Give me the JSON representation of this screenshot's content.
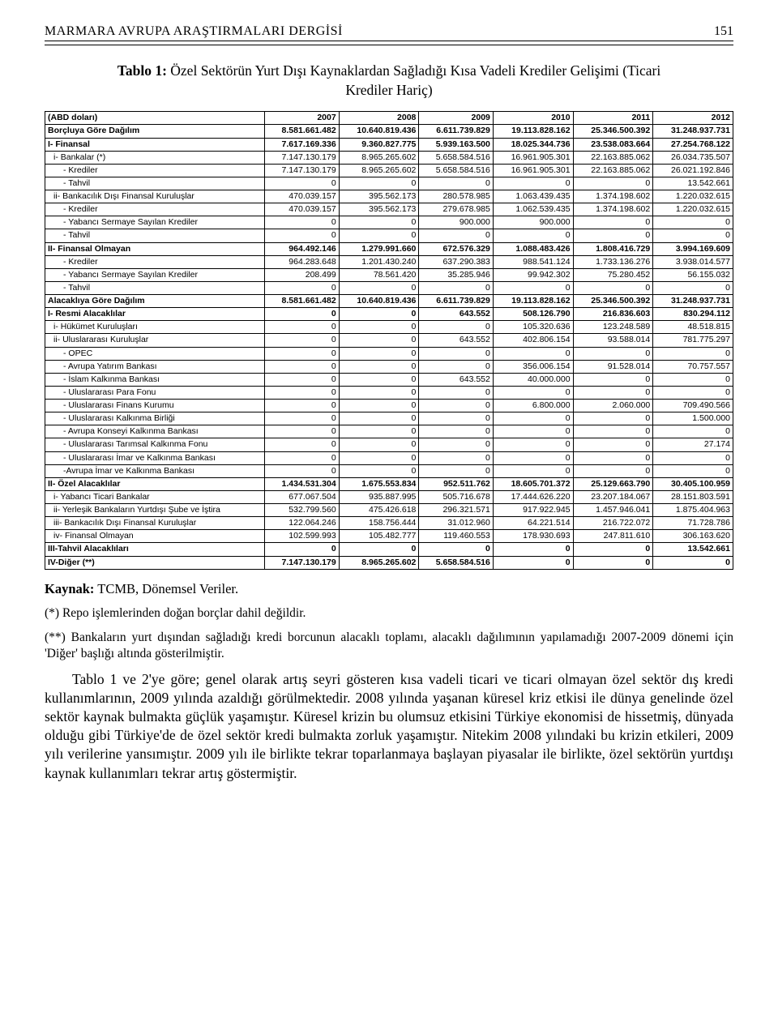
{
  "header": {
    "journal": "MARMARA AVRUPA ARAŞTIRMALARI DERGİSİ",
    "page": "151"
  },
  "caption": {
    "label": "Tablo 1:",
    "text": " Özel Sektörün Yurt Dışı Kaynaklardan Sağladığı Kısa Vadeli Krediler Gelişimi (Ticari Krediler Hariç)"
  },
  "table": {
    "corner": "(ABD doları)",
    "years": [
      "2007",
      "2008",
      "2009",
      "2010",
      "2011",
      "2012"
    ],
    "rows": [
      {
        "label": "Borçluya Göre Dağılım",
        "bold": true,
        "indent": 0,
        "vals": [
          "8.581.661.482",
          "10.640.819.436",
          "6.611.739.829",
          "19.113.828.162",
          "25.346.500.392",
          "31.248.937.731"
        ]
      },
      {
        "label": "I- Finansal",
        "bold": true,
        "indent": 0,
        "vals": [
          "7.617.169.336",
          "9.360.827.775",
          "5.939.163.500",
          "18.025.344.736",
          "23.538.083.664",
          "27.254.768.122"
        ]
      },
      {
        "label": "i- Bankalar (*)",
        "bold": false,
        "indent": 1,
        "vals": [
          "7.147.130.179",
          "8.965.265.602",
          "5.658.584.516",
          "16.961.905.301",
          "22.163.885.062",
          "26.034.735.507"
        ]
      },
      {
        "label": "- Krediler",
        "bold": false,
        "indent": 2,
        "vals": [
          "7.147.130.179",
          "8.965.265.602",
          "5.658.584.516",
          "16.961.905.301",
          "22.163.885.062",
          "26.021.192.846"
        ]
      },
      {
        "label": "- Tahvil",
        "bold": false,
        "indent": 2,
        "vals": [
          "0",
          "0",
          "0",
          "0",
          "0",
          "13.542.661"
        ]
      },
      {
        "label": "ii- Bankacılık Dışı Finansal Kuruluşlar",
        "bold": false,
        "indent": 1,
        "vals": [
          "470.039.157",
          "395.562.173",
          "280.578.985",
          "1.063.439.435",
          "1.374.198.602",
          "1.220.032.615"
        ]
      },
      {
        "label": "- Krediler",
        "bold": false,
        "indent": 2,
        "vals": [
          "470.039.157",
          "395.562.173",
          "279.678.985",
          "1.062.539.435",
          "1.374.198.602",
          "1.220.032.615"
        ]
      },
      {
        "label": "- Yabancı Sermaye Sayılan Krediler",
        "bold": false,
        "indent": 2,
        "vals": [
          "0",
          "0",
          "900.000",
          "900.000",
          "0",
          "0"
        ]
      },
      {
        "label": "- Tahvil",
        "bold": false,
        "indent": 2,
        "vals": [
          "0",
          "0",
          "0",
          "0",
          "0",
          "0"
        ]
      },
      {
        "label": "II- Finansal Olmayan",
        "bold": true,
        "indent": 0,
        "vals": [
          "964.492.146",
          "1.279.991.660",
          "672.576.329",
          "1.088.483.426",
          "1.808.416.729",
          "3.994.169.609"
        ]
      },
      {
        "label": "- Krediler",
        "bold": false,
        "indent": 2,
        "vals": [
          "964.283.648",
          "1.201.430.240",
          "637.290.383",
          "988.541.124",
          "1.733.136.276",
          "3.938.014.577"
        ]
      },
      {
        "label": "- Yabancı Sermaye Sayılan Krediler",
        "bold": false,
        "indent": 2,
        "vals": [
          "208.499",
          "78.561.420",
          "35.285.946",
          "99.942.302",
          "75.280.452",
          "56.155.032"
        ]
      },
      {
        "label": "- Tahvil",
        "bold": false,
        "indent": 2,
        "vals": [
          "0",
          "0",
          "0",
          "0",
          "0",
          "0"
        ]
      },
      {
        "label": "Alacaklıya Göre Dağılım",
        "bold": true,
        "indent": 0,
        "vals": [
          "8.581.661.482",
          "10.640.819.436",
          "6.611.739.829",
          "19.113.828.162",
          "25.346.500.392",
          "31.248.937.731"
        ]
      },
      {
        "label": "I- Resmi Alacaklılar",
        "bold": true,
        "indent": 0,
        "vals": [
          "0",
          "0",
          "643.552",
          "508.126.790",
          "216.836.603",
          "830.294.112"
        ]
      },
      {
        "label": "i- Hükümet Kuruluşları",
        "bold": false,
        "indent": 1,
        "vals": [
          "0",
          "0",
          "0",
          "105.320.636",
          "123.248.589",
          "48.518.815"
        ]
      },
      {
        "label": "ii- Uluslararası Kuruluşlar",
        "bold": false,
        "indent": 1,
        "vals": [
          "0",
          "0",
          "643.552",
          "402.806.154",
          "93.588.014",
          "781.775.297"
        ]
      },
      {
        "label": "- OPEC",
        "bold": false,
        "indent": 2,
        "vals": [
          "0",
          "0",
          "0",
          "0",
          "0",
          "0"
        ]
      },
      {
        "label": "- Avrupa Yatırım Bankası",
        "bold": false,
        "indent": 2,
        "vals": [
          "0",
          "0",
          "0",
          "356.006.154",
          "91.528.014",
          "70.757.557"
        ]
      },
      {
        "label": "- İslam Kalkınma Bankası",
        "bold": false,
        "indent": 2,
        "vals": [
          "0",
          "0",
          "643.552",
          "40.000.000",
          "0",
          "0"
        ]
      },
      {
        "label": "- Uluslararası Para Fonu",
        "bold": false,
        "indent": 2,
        "vals": [
          "0",
          "0",
          "0",
          "0",
          "0",
          "0"
        ]
      },
      {
        "label": "- Uluslararası Finans Kurumu",
        "bold": false,
        "indent": 2,
        "vals": [
          "0",
          "0",
          "0",
          "6.800.000",
          "2.060.000",
          "709.490.566"
        ]
      },
      {
        "label": "- Uluslararası Kalkınma Birliği",
        "bold": false,
        "indent": 2,
        "vals": [
          "0",
          "0",
          "0",
          "0",
          "0",
          "1.500.000"
        ]
      },
      {
        "label": "- Avrupa Konseyi Kalkınma Bankası",
        "bold": false,
        "indent": 2,
        "vals": [
          "0",
          "0",
          "0",
          "0",
          "0",
          "0"
        ]
      },
      {
        "label": "- Uluslararası Tarımsal Kalkınma Fonu",
        "bold": false,
        "indent": 2,
        "vals": [
          "0",
          "0",
          "0",
          "0",
          "0",
          "27.174"
        ]
      },
      {
        "label": "- Uluslararası İmar ve Kalkınma Bankası",
        "bold": false,
        "indent": 2,
        "vals": [
          "0",
          "0",
          "0",
          "0",
          "0",
          "0"
        ]
      },
      {
        "label": "-Avrupa İmar ve Kalkınma Bankası",
        "bold": false,
        "indent": 2,
        "vals": [
          "0",
          "0",
          "0",
          "0",
          "0",
          "0"
        ]
      },
      {
        "label": "II- Özel Alacaklılar",
        "bold": true,
        "indent": 0,
        "vals": [
          "1.434.531.304",
          "1.675.553.834",
          "952.511.762",
          "18.605.701.372",
          "25.129.663.790",
          "30.405.100.959"
        ]
      },
      {
        "label": "i- Yabancı Ticari Bankalar",
        "bold": false,
        "indent": 1,
        "vals": [
          "677.067.504",
          "935.887.995",
          "505.716.678",
          "17.444.626.220",
          "23.207.184.067",
          "28.151.803.591"
        ]
      },
      {
        "label": "ii- Yerleşik Bankaların Yurtdışı Şube ve İştira",
        "bold": false,
        "indent": 1,
        "vals": [
          "532.799.560",
          "475.426.618",
          "296.321.571",
          "917.922.945",
          "1.457.946.041",
          "1.875.404.963"
        ]
      },
      {
        "label": "iii- Bankacılık Dışı Finansal Kuruluşlar",
        "bold": false,
        "indent": 1,
        "vals": [
          "122.064.246",
          "158.756.444",
          "31.012.960",
          "64.221.514",
          "216.722.072",
          "71.728.786"
        ]
      },
      {
        "label": "iv- Finansal Olmayan",
        "bold": false,
        "indent": 1,
        "vals": [
          "102.599.993",
          "105.482.777",
          "119.460.553",
          "178.930.693",
          "247.811.610",
          "306.163.620"
        ]
      },
      {
        "label": "III-Tahvil Alacaklıları",
        "bold": true,
        "indent": 0,
        "vals": [
          "0",
          "0",
          "0",
          "0",
          "0",
          "13.542.661"
        ]
      },
      {
        "label": "IV-Diğer (**)",
        "bold": true,
        "indent": 0,
        "vals": [
          "7.147.130.179",
          "8.965.265.602",
          "5.658.584.516",
          "0",
          "0",
          "0"
        ]
      }
    ]
  },
  "source": {
    "label": "Kaynak:",
    "text": " TCMB, Dönemsel Veriler."
  },
  "note1": "(*) Repo işlemlerinden doğan borçlar dahil değildir.",
  "note2": "(**) Bankaların yurt dışından sağladığı kredi borcunun alacaklı toplamı, alacaklı dağılımının yapılamadığı 2007-2009 dönemi için 'Diğer' başlığı altında gösterilmiştir.",
  "paragraph": "Tablo 1 ve 2'ye göre; genel olarak artış seyri gösteren kısa vadeli ticari ve ticari olmayan özel sektör dış kredi kullanımlarının, 2009 yılında azaldığı görülmektedir. 2008 yılında yaşanan küresel kriz etkisi ile dünya genelinde özel sektör kaynak bulmakta güçlük yaşamıştır. Küresel krizin bu olumsuz etkisini Türkiye ekonomisi de hissetmiş, dünyada olduğu gibi Türkiye'de de özel sektör kredi bulmakta zorluk yaşamıştır. Nitekim 2008 yılındaki bu krizin etkileri, 2009 yılı verilerine yansımıştır. 2009 yılı ile birlikte tekrar toparlanmaya başlayan piyasalar ile birlikte, özel sektörün yurtdışı kaynak kullanımları tekrar artış göstermiştir."
}
